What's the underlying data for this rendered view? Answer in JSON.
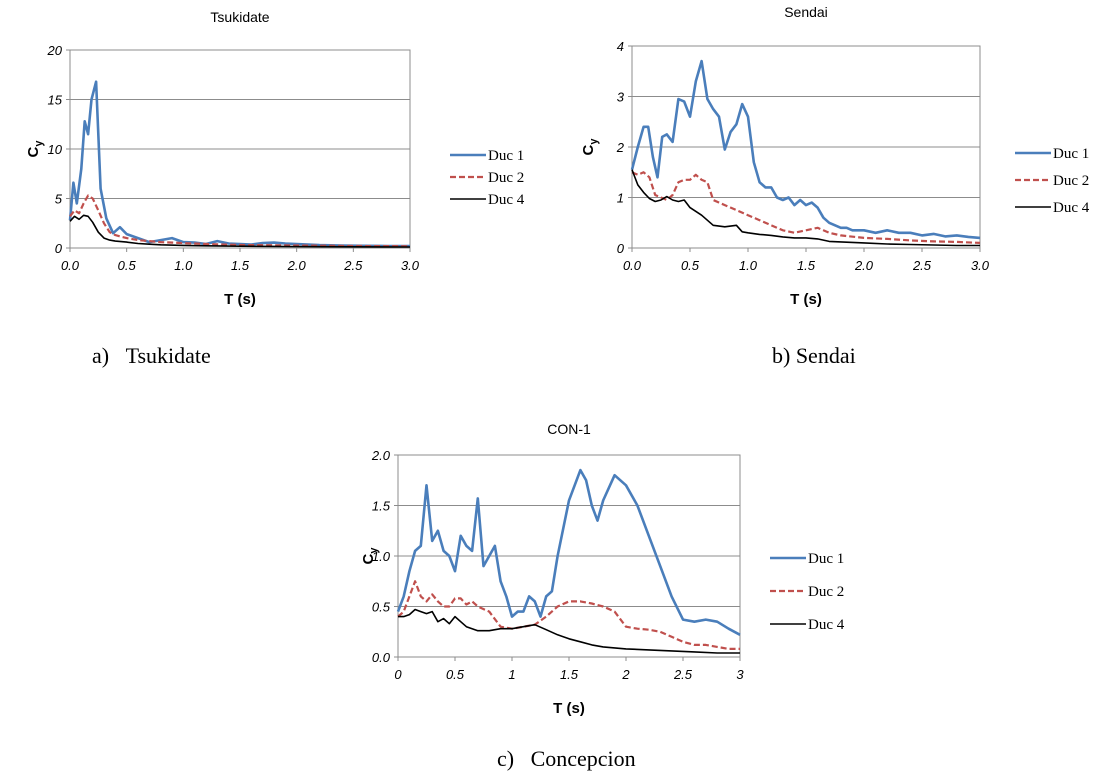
{
  "charts": [
    {
      "caption": "a)   Tsukidate",
      "chart_data": {
        "type": "line",
        "title": "Tsukidate",
        "xlabel": "T (s)",
        "ylabel_base": "C",
        "ylabel_sub": "y",
        "xlim": [
          0,
          3
        ],
        "ylim": [
          0,
          20
        ],
        "xticks": [
          "0.0",
          "0.5",
          "1.0",
          "1.5",
          "2.0",
          "2.5",
          "3.0"
        ],
        "yticks": [
          "0",
          "5",
          "10",
          "15",
          "20"
        ],
        "xtick_values": [
          0,
          0.5,
          1,
          1.5,
          2,
          2.5,
          3
        ],
        "ytick_values": [
          0,
          5,
          10,
          15,
          20
        ],
        "grid": "horizontal",
        "legend_position": "right",
        "series": [
          {
            "name": "Duc 1",
            "color": "#4a7ebb",
            "dash": "solid",
            "x": [
              0,
              0.03,
              0.06,
              0.1,
              0.13,
              0.16,
              0.19,
              0.23,
              0.27,
              0.32,
              0.38,
              0.44,
              0.5,
              0.6,
              0.7,
              0.8,
              0.9,
              1.0,
              1.1,
              1.2,
              1.3,
              1.4,
              1.5,
              1.6,
              1.7,
              1.8,
              1.9,
              2.0,
              2.2,
              2.4,
              2.6,
              2.8,
              3.0
            ],
            "y": [
              2.8,
              6.6,
              4.5,
              8.0,
              12.8,
              11.5,
              15.0,
              16.8,
              6.0,
              3.0,
              1.5,
              2.1,
              1.4,
              1.0,
              0.6,
              0.8,
              1.0,
              0.6,
              0.55,
              0.4,
              0.7,
              0.45,
              0.4,
              0.35,
              0.5,
              0.55,
              0.45,
              0.4,
              0.3,
              0.25,
              0.22,
              0.2,
              0.2
            ]
          },
          {
            "name": "Duc 2",
            "color": "#c0504d",
            "dash": "dashed",
            "x": [
              0,
              0.04,
              0.08,
              0.12,
              0.16,
              0.2,
              0.25,
              0.3,
              0.35,
              0.4,
              0.5,
              0.6,
              0.7,
              0.8,
              1.0,
              1.2,
              1.5,
              2.0,
              2.5,
              3.0
            ],
            "y": [
              3.2,
              3.8,
              3.5,
              4.5,
              5.3,
              5.0,
              3.8,
              2.5,
              1.6,
              1.3,
              1.0,
              0.8,
              0.7,
              0.6,
              0.5,
              0.4,
              0.3,
              0.25,
              0.2,
              0.18
            ]
          },
          {
            "name": "Duc 4",
            "color": "#000000",
            "dash": "solid",
            "x": [
              0,
              0.04,
              0.08,
              0.12,
              0.16,
              0.2,
              0.25,
              0.3,
              0.35,
              0.4,
              0.5,
              0.6,
              0.7,
              0.8,
              1.0,
              1.2,
              1.5,
              2.0,
              2.5,
              3.0
            ],
            "y": [
              2.7,
              3.2,
              2.9,
              3.3,
              3.2,
              2.6,
              1.6,
              1.0,
              0.8,
              0.7,
              0.6,
              0.45,
              0.38,
              0.32,
              0.26,
              0.22,
              0.18,
              0.14,
              0.12,
              0.1
            ]
          }
        ]
      }
    },
    {
      "caption": "b) Sendai",
      "chart_data": {
        "type": "line",
        "title": "Sendai",
        "xlabel": "T (s)",
        "ylabel_base": "C",
        "ylabel_sub": "y",
        "xlim": [
          0,
          3
        ],
        "ylim": [
          0,
          4
        ],
        "xticks": [
          "0.0",
          "0.5",
          "1.0",
          "1.5",
          "2.0",
          "2.5",
          "3.0"
        ],
        "yticks": [
          "0",
          "1",
          "2",
          "3",
          "4"
        ],
        "xtick_values": [
          0,
          0.5,
          1,
          1.5,
          2,
          2.5,
          3
        ],
        "ytick_values": [
          0,
          1,
          2,
          3,
          4
        ],
        "grid": "horizontal",
        "legend_position": "right",
        "series": [
          {
            "name": "Duc 1",
            "color": "#4a7ebb",
            "dash": "solid",
            "x": [
              0,
              0.05,
              0.1,
              0.14,
              0.18,
              0.22,
              0.26,
              0.3,
              0.35,
              0.4,
              0.45,
              0.5,
              0.55,
              0.6,
              0.65,
              0.7,
              0.75,
              0.8,
              0.85,
              0.9,
              0.95,
              1.0,
              1.05,
              1.1,
              1.15,
              1.2,
              1.25,
              1.3,
              1.35,
              1.4,
              1.45,
              1.5,
              1.55,
              1.6,
              1.65,
              1.7,
              1.75,
              1.8,
              1.85,
              1.9,
              2.0,
              2.1,
              2.2,
              2.3,
              2.4,
              2.5,
              2.6,
              2.7,
              2.8,
              2.9,
              3.0
            ],
            "y": [
              1.55,
              2.0,
              2.4,
              2.4,
              1.8,
              1.4,
              2.2,
              2.25,
              2.1,
              2.95,
              2.9,
              2.6,
              3.3,
              3.7,
              2.95,
              2.75,
              2.6,
              1.95,
              2.3,
              2.45,
              2.85,
              2.6,
              1.7,
              1.3,
              1.2,
              1.2,
              1.0,
              0.95,
              1.0,
              0.85,
              0.95,
              0.85,
              0.9,
              0.8,
              0.6,
              0.5,
              0.45,
              0.4,
              0.4,
              0.35,
              0.35,
              0.3,
              0.35,
              0.3,
              0.3,
              0.25,
              0.28,
              0.23,
              0.25,
              0.22,
              0.2
            ]
          },
          {
            "name": "Duc 2",
            "color": "#c0504d",
            "dash": "dashed",
            "x": [
              0,
              0.05,
              0.1,
              0.15,
              0.2,
              0.25,
              0.3,
              0.35,
              0.4,
              0.45,
              0.5,
              0.55,
              0.6,
              0.65,
              0.7,
              0.8,
              0.9,
              1.0,
              1.1,
              1.2,
              1.3,
              1.4,
              1.5,
              1.6,
              1.7,
              1.8,
              2.0,
              2.2,
              2.4,
              2.6,
              2.8,
              3.0
            ],
            "y": [
              1.5,
              1.45,
              1.5,
              1.4,
              1.05,
              1.0,
              0.95,
              1.05,
              1.3,
              1.35,
              1.35,
              1.45,
              1.35,
              1.3,
              0.95,
              0.85,
              0.75,
              0.65,
              0.55,
              0.45,
              0.35,
              0.3,
              0.35,
              0.4,
              0.3,
              0.25,
              0.2,
              0.18,
              0.15,
              0.13,
              0.12,
              0.1
            ]
          },
          {
            "name": "Duc 4",
            "color": "#000000",
            "dash": "solid",
            "x": [
              0,
              0.05,
              0.1,
              0.15,
              0.2,
              0.25,
              0.3,
              0.35,
              0.4,
              0.45,
              0.5,
              0.6,
              0.7,
              0.8,
              0.9,
              0.95,
              1.0,
              1.1,
              1.2,
              1.3,
              1.4,
              1.5,
              1.6,
              1.7,
              1.8,
              2.0,
              2.2,
              2.4,
              2.6,
              2.8,
              3.0
            ],
            "y": [
              1.55,
              1.25,
              1.1,
              0.98,
              0.92,
              0.95,
              1.02,
              0.95,
              0.92,
              0.95,
              0.8,
              0.65,
              0.45,
              0.42,
              0.45,
              0.32,
              0.3,
              0.27,
              0.25,
              0.22,
              0.2,
              0.2,
              0.18,
              0.13,
              0.12,
              0.1,
              0.08,
              0.07,
              0.06,
              0.05,
              0.05
            ]
          }
        ]
      }
    },
    {
      "caption": "c)   Concepcion",
      "chart_data": {
        "type": "line",
        "title": "CON-1",
        "xlabel": "T (s)",
        "ylabel_base": "C",
        "ylabel_sub": "y",
        "xlim": [
          0,
          3
        ],
        "ylim": [
          0,
          2
        ],
        "xticks": [
          "0",
          "0.5",
          "1",
          "1.5",
          "2",
          "2.5",
          "3"
        ],
        "yticks": [
          "0.0",
          "0.5",
          "1.0",
          "1.5",
          "2.0"
        ],
        "xtick_values": [
          0,
          0.5,
          1,
          1.5,
          2,
          2.5,
          3
        ],
        "ytick_values": [
          0,
          0.5,
          1,
          1.5,
          2
        ],
        "grid": "horizontal",
        "legend_position": "right",
        "series": [
          {
            "name": "Duc 1",
            "color": "#4a7ebb",
            "dash": "solid",
            "x": [
              0,
              0.05,
              0.1,
              0.15,
              0.2,
              0.25,
              0.3,
              0.35,
              0.4,
              0.45,
              0.5,
              0.55,
              0.6,
              0.65,
              0.7,
              0.75,
              0.8,
              0.85,
              0.9,
              0.95,
              1.0,
              1.05,
              1.1,
              1.15,
              1.2,
              1.25,
              1.3,
              1.35,
              1.4,
              1.5,
              1.6,
              1.65,
              1.7,
              1.75,
              1.8,
              1.9,
              2.0,
              2.1,
              2.2,
              2.3,
              2.4,
              2.5,
              2.6,
              2.7,
              2.8,
              2.9,
              3.0
            ],
            "y": [
              0.45,
              0.6,
              0.85,
              1.05,
              1.1,
              1.7,
              1.15,
              1.25,
              1.05,
              1.0,
              0.85,
              1.2,
              1.1,
              1.05,
              1.57,
              0.9,
              1.0,
              1.1,
              0.75,
              0.6,
              0.4,
              0.45,
              0.45,
              0.6,
              0.55,
              0.4,
              0.6,
              0.65,
              1.0,
              1.55,
              1.85,
              1.75,
              1.5,
              1.35,
              1.55,
              1.8,
              1.7,
              1.5,
              1.2,
              0.9,
              0.6,
              0.37,
              0.35,
              0.37,
              0.35,
              0.28,
              0.22
            ]
          },
          {
            "name": "Duc 2",
            "color": "#c0504d",
            "dash": "dashed",
            "x": [
              0,
              0.05,
              0.1,
              0.15,
              0.2,
              0.25,
              0.3,
              0.35,
              0.4,
              0.45,
              0.5,
              0.55,
              0.6,
              0.65,
              0.7,
              0.8,
              0.9,
              1.0,
              1.1,
              1.2,
              1.3,
              1.4,
              1.5,
              1.6,
              1.7,
              1.8,
              1.9,
              2.0,
              2.1,
              2.2,
              2.3,
              2.4,
              2.5,
              2.6,
              2.7,
              2.8,
              2.9,
              3.0
            ],
            "y": [
              0.4,
              0.45,
              0.6,
              0.75,
              0.6,
              0.55,
              0.62,
              0.55,
              0.5,
              0.5,
              0.58,
              0.58,
              0.52,
              0.55,
              0.5,
              0.45,
              0.3,
              0.28,
              0.3,
              0.32,
              0.4,
              0.5,
              0.55,
              0.55,
              0.53,
              0.5,
              0.45,
              0.3,
              0.28,
              0.27,
              0.25,
              0.2,
              0.15,
              0.12,
              0.12,
              0.1,
              0.08,
              0.08
            ]
          },
          {
            "name": "Duc 4",
            "color": "#000000",
            "dash": "solid",
            "x": [
              0,
              0.05,
              0.1,
              0.15,
              0.2,
              0.25,
              0.3,
              0.35,
              0.4,
              0.45,
              0.5,
              0.55,
              0.6,
              0.65,
              0.7,
              0.8,
              0.9,
              1.0,
              1.1,
              1.2,
              1.3,
              1.4,
              1.5,
              1.6,
              1.7,
              1.8,
              1.9,
              2.0,
              2.2,
              2.4,
              2.6,
              2.8,
              3.0
            ],
            "y": [
              0.4,
              0.4,
              0.42,
              0.47,
              0.45,
              0.43,
              0.45,
              0.35,
              0.38,
              0.33,
              0.4,
              0.35,
              0.3,
              0.28,
              0.26,
              0.26,
              0.28,
              0.28,
              0.3,
              0.32,
              0.27,
              0.22,
              0.18,
              0.15,
              0.12,
              0.1,
              0.09,
              0.08,
              0.07,
              0.06,
              0.05,
              0.04,
              0.04
            ]
          }
        ]
      }
    }
  ]
}
